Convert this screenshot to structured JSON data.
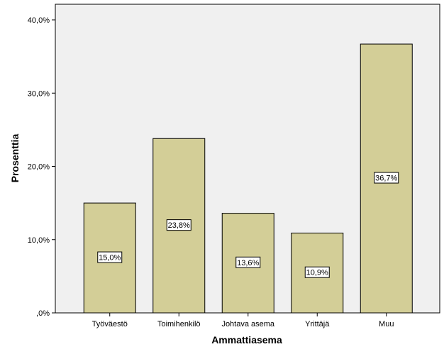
{
  "chart_data": {
    "type": "bar",
    "categories": [
      "Työväestö",
      "Toimihenkilö",
      "Johtava asema",
      "Yrittäjä",
      "Muu"
    ],
    "values": [
      15.0,
      23.8,
      13.6,
      10.9,
      36.7
    ],
    "data_labels": [
      "15,0%",
      "23,8%",
      "13,6%",
      "10,9%",
      "36,7%"
    ],
    "xlabel": "Ammattiasema",
    "ylabel": "Prosenttia",
    "ylim": [
      0,
      40
    ],
    "yticks": [
      0,
      10,
      20,
      30,
      40
    ],
    "ytick_labels": [
      ",0%",
      "10,0%",
      "20,0%",
      "30,0%",
      "40,0%"
    ],
    "grid": false,
    "colors": {
      "plot_background": "#f0f0f0",
      "bar_fill": "#d3ce97",
      "bar_stroke": "#000000"
    }
  }
}
